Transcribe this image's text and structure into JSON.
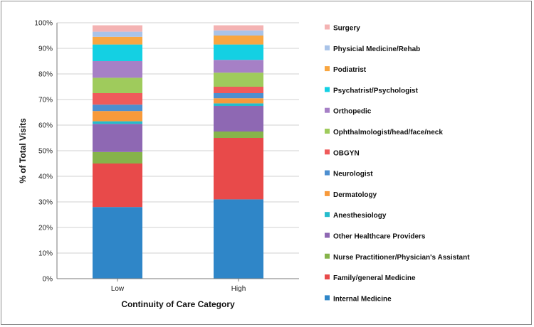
{
  "chart_data": {
    "type": "bar",
    "stacked": true,
    "percent_stacked": true,
    "categories": [
      "Low",
      "High"
    ],
    "xlabel": "Continuity of Care Category",
    "ylabel": "% of Total Visits",
    "ylim": [
      0,
      100
    ],
    "yticks": [
      "0%",
      "10%",
      "20%",
      "30%",
      "40%",
      "50%",
      "60%",
      "70%",
      "80%",
      "90%",
      "100%"
    ],
    "grid": true,
    "legend_position": "right",
    "series": [
      {
        "name": "Internal Medicine",
        "values": [
          28.0,
          31.0
        ],
        "color": "#2f86c8"
      },
      {
        "name": "Family/general Medicine",
        "values": [
          17.0,
          24.0
        ],
        "color": "#e84a4a"
      },
      {
        "name": "Nurse Practitioner/Physician's Assistant",
        "values": [
          4.5,
          2.5
        ],
        "color": "#86b34a"
      },
      {
        "name": "Other Healthcare Providers",
        "values": [
          11.0,
          10.0
        ],
        "color": "#8e68b3"
      },
      {
        "name": "Anesthesiology",
        "values": [
          1.0,
          1.0
        ],
        "color": "#25bccc"
      },
      {
        "name": "Dermatology",
        "values": [
          4.0,
          2.0
        ],
        "color": "#f79a3b"
      },
      {
        "name": "Neurologist",
        "values": [
          2.5,
          2.0
        ],
        "color": "#4d8fd0"
      },
      {
        "name": "OBGYN",
        "values": [
          4.5,
          2.5
        ],
        "color": "#ef5b5b"
      },
      {
        "name": "Ophthalmologist/head/face/neck",
        "values": [
          6.0,
          5.5
        ],
        "color": "#9fcb5c"
      },
      {
        "name": "Orthopedic",
        "values": [
          6.5,
          5.0
        ],
        "color": "#a680c6"
      },
      {
        "name": "Psychatrist/Psychologist",
        "values": [
          6.5,
          6.0
        ],
        "color": "#14d0e3"
      },
      {
        "name": "Podiatrist",
        "values": [
          3.0,
          3.5
        ],
        "color": "#f9a640"
      },
      {
        "name": "Physicial Medicine/Rehab",
        "values": [
          2.0,
          2.0
        ],
        "color": "#a9c3e8"
      },
      {
        "name": "Surgery",
        "values": [
          2.5,
          2.0
        ],
        "color": "#f4b3b3"
      }
    ]
  }
}
